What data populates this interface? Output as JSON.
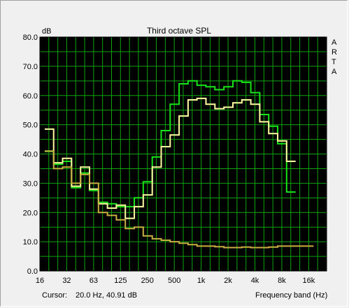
{
  "window": {
    "title": "Third octave SPL"
  },
  "chart_data": {
    "type": "line",
    "title": "Third octave SPL",
    "ylabel": "dB",
    "xlabel": "Frequency band (Hz)",
    "watermark": [
      "A",
      "R",
      "T",
      "A"
    ],
    "ylim": [
      0,
      80
    ],
    "y_ticks": [
      "0.0",
      "10.0",
      "20.0",
      "30.0",
      "40.0",
      "50.0",
      "60.0",
      "70.0",
      "80.0"
    ],
    "x_tick_labels": [
      "16",
      "32",
      "63",
      "125",
      "250",
      "500",
      "1k",
      "2k",
      "4k",
      "8k",
      "16k"
    ],
    "x_band_centers": [
      16,
      20,
      25,
      31.5,
      40,
      50,
      63,
      80,
      100,
      125,
      160,
      200,
      250,
      315,
      400,
      500,
      630,
      800,
      1000,
      1250,
      1600,
      2000,
      2500,
      3150,
      4000,
      5000,
      6300,
      8000,
      10000,
      12500,
      16000,
      20000
    ],
    "grid": true,
    "background": "#000000",
    "grid_color": "#0ea50e",
    "series": [
      {
        "color": "#17e417",
        "values": [
          null,
          40.9,
          36.5,
          37.5,
          28.5,
          33.5,
          27.5,
          23.5,
          23.0,
          22.0,
          22.0,
          25.0,
          30.5,
          39.0,
          48.0,
          57.0,
          64.0,
          65.0,
          63.5,
          63.0,
          62.0,
          63.0,
          65.0,
          64.5,
          61.0,
          53.5,
          49.5,
          43.5,
          27.0
        ]
      },
      {
        "color": "#ffffa0",
        "values": [
          null,
          48.5,
          37.0,
          38.5,
          29.0,
          35.5,
          28.0,
          23.0,
          21.5,
          22.5,
          18.0,
          22.0,
          26.0,
          35.5,
          42.5,
          46.5,
          53.0,
          58.5,
          59.0,
          57.0,
          55.5,
          56.0,
          57.5,
          58.5,
          57.0,
          51.0,
          47.0,
          44.5,
          37.5
        ]
      },
      {
        "color": "#c8b040",
        "values": [
          null,
          41.0,
          35.0,
          35.5,
          30.0,
          33.0,
          30.0,
          20.0,
          19.0,
          17.5,
          14.5,
          15.0,
          12.0,
          11.0,
          10.5,
          10.0,
          9.5,
          9.0,
          8.5,
          8.5,
          8.3,
          8.0,
          8.0,
          8.2,
          8.0,
          8.0,
          8.2,
          8.5,
          8.5,
          8.5,
          8.5
        ]
      }
    ]
  },
  "status_bar": {
    "cursor_label": "Cursor:",
    "cursor_value": "20.0 Hz, 40.91 dB",
    "axis_caption": "Frequency band (Hz)"
  }
}
